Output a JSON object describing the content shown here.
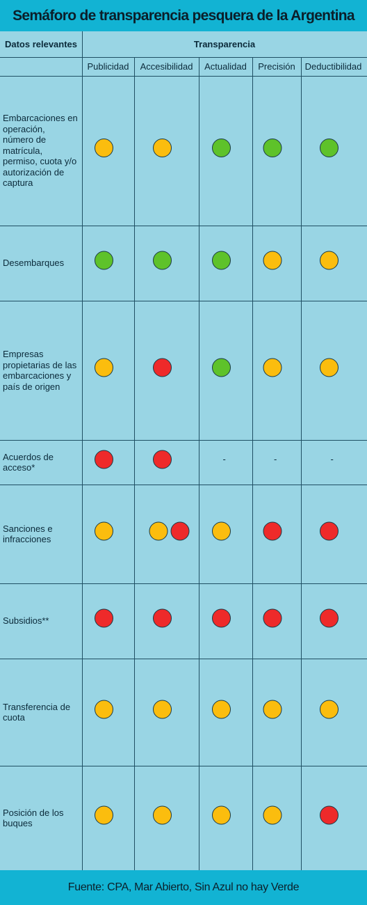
{
  "title": "Semáforo de transparencia pesquera de la Argentina",
  "footer": "Fuente: CPA, Mar Abierto, Sin Azul no hay Verde",
  "colors": {
    "verde": "#5ec22a",
    "amarillo": "#fbbd0e",
    "rojo": "#ee2a2a"
  },
  "chart_data": {
    "type": "table",
    "row_header": "Datos relevantes",
    "group_header": "Transparencia",
    "columns": [
      "Publicidad",
      "Accesibilidad",
      "Actualidad",
      "Precisión",
      "Deductibilidad"
    ],
    "rows": [
      {
        "label": "Embarcaciones en operación, número de matrícula, permiso, cuota y/o autorización de captura",
        "values": [
          [
            "amarillo"
          ],
          [
            "amarillo"
          ],
          [
            "verde"
          ],
          [
            "verde"
          ],
          [
            "verde"
          ]
        ]
      },
      {
        "label": "Desembarques",
        "values": [
          [
            "verde"
          ],
          [
            "verde"
          ],
          [
            "verde"
          ],
          [
            "amarillo"
          ],
          [
            "amarillo"
          ]
        ]
      },
      {
        "label": "Empresas propietarias de las embarcaciones y país de origen",
        "values": [
          [
            "amarillo"
          ],
          [
            "rojo"
          ],
          [
            "verde"
          ],
          [
            "amarillo"
          ],
          [
            "amarillo"
          ]
        ]
      },
      {
        "label": "Acuerdos de acceso*",
        "values": [
          [
            "rojo"
          ],
          [
            "rojo"
          ],
          [],
          [],
          []
        ]
      },
      {
        "label": "Sanciones e infracciones",
        "values": [
          [
            "amarillo"
          ],
          [
            "amarillo",
            "rojo"
          ],
          [
            "amarillo"
          ],
          [
            "rojo"
          ],
          [
            "rojo"
          ]
        ]
      },
      {
        "label": "Subsidios**",
        "values": [
          [
            "rojo"
          ],
          [
            "rojo"
          ],
          [
            "rojo"
          ],
          [
            "rojo"
          ],
          [
            "rojo"
          ]
        ]
      },
      {
        "label": "Transferencia de cuota",
        "values": [
          [
            "amarillo"
          ],
          [
            "amarillo"
          ],
          [
            "amarillo"
          ],
          [
            "amarillo"
          ],
          [
            "amarillo"
          ]
        ]
      },
      {
        "label": "Posición de los buques",
        "values": [
          [
            "amarillo"
          ],
          [
            "amarillo"
          ],
          [
            "amarillo"
          ],
          [
            "amarillo"
          ],
          [
            "rojo"
          ]
        ]
      }
    ],
    "empty_marker": "-"
  }
}
